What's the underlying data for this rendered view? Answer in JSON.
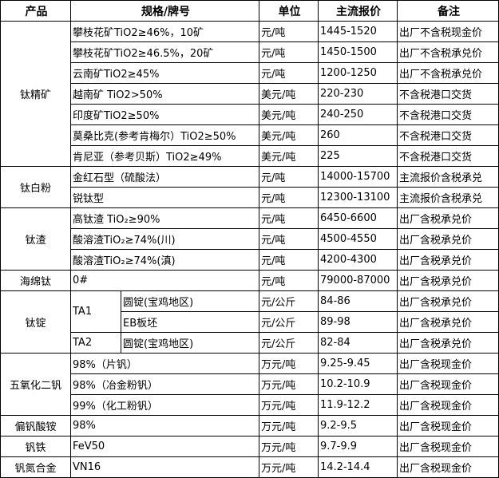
{
  "header": {
    "product": "产品",
    "spec": "规格/牌号",
    "unit": "单位",
    "price": "主流报价",
    "note": "备注"
  },
  "groups": [
    {
      "product": "钛精矿",
      "rows": [
        {
          "spec": "攀枝花矿TiO2≥46%，10矿",
          "unit": "元/吨",
          "price": "1445-1520",
          "note": "出厂不含税现金价"
        },
        {
          "spec": "攀枝花矿TiO2≥46.5%，20矿",
          "unit": "元/吨",
          "price": "1450-1500",
          "note": "出厂不含税承兑价"
        },
        {
          "spec": "云南矿TiO2≥45%",
          "unit": "元/吨",
          "price": "1200-1250",
          "note": "出厂不含税承兑价"
        },
        {
          "spec": "越南矿 TiO2>50%",
          "unit": "美元/吨",
          "price": "220-230",
          "note": "不含税港口交货"
        },
        {
          "spec": "印度矿TiO2≥50%",
          "unit": "美元/吨",
          "price": "240-250",
          "note": "不含税港口交货"
        },
        {
          "spec": "莫桑比克(参考肯梅尔）TiO2≥50%",
          "unit": "美元/吨",
          "price": "260",
          "note": "不含税港口交货"
        },
        {
          "spec": "肯尼亚（参考贝斯）TiO2≥49%",
          "unit": "美元/吨",
          "price": "225",
          "note": "不含税港口交货"
        }
      ]
    },
    {
      "product": "钛白粉",
      "rows": [
        {
          "spec": "金红石型（硫酸法）",
          "unit": "元/吨",
          "price": "14000-15700",
          "note": "主流报价含税承兑"
        },
        {
          "spec": "锐钛型",
          "unit": "元/吨",
          "price": "12300-13100",
          "note": "主流报价含税承兑"
        }
      ]
    },
    {
      "product": "钛渣",
      "rows": [
        {
          "spec": "高钛渣 TiO₂≥90%",
          "unit": "元/吨",
          "price": "6450-6600",
          "note": "出厂含税承兑价"
        },
        {
          "spec": "酸溶渣TiO₂≥74%(川)",
          "unit": "元/吨",
          "price": "4500-4550",
          "note": "出厂含税承兑价"
        },
        {
          "spec": "酸溶渣TiO₂≥74%(滇)",
          "unit": "元/吨",
          "price": "4200-4300",
          "note": "出厂含税承兑价"
        }
      ]
    },
    {
      "product": "海绵钛",
      "rows": [
        {
          "spec": "0#",
          "unit": "元/吨",
          "price": "79000-87000",
          "note": "出厂含税承兑价"
        }
      ]
    },
    {
      "product": "钛锭",
      "rows": [
        {
          "grade": "TA1",
          "sub": "圆锭(宝鸡地区)",
          "unit": "元/公斤",
          "price": "84-86",
          "note": "出厂含税承兑价"
        },
        {
          "sub": "EB板坯",
          "unit": "元/公斤",
          "price": "89-98",
          "note": "出厂含税承兑价"
        },
        {
          "grade": "TA2",
          "sub": "圆锭(宝鸡地区)",
          "unit": "元/公斤",
          "price": "82-84",
          "note": "出厂含税承兑价"
        }
      ]
    },
    {
      "product": "五氧化二钒",
      "rows": [
        {
          "spec": "98%（片钒）",
          "unit": "万元/吨",
          "price": "9.25-9.45",
          "note": "出厂含税现金价"
        },
        {
          "spec": "98%（冶金粉钒）",
          "unit": "万元/吨",
          "price": "10.2-10.9",
          "note": "出厂含税现金价"
        },
        {
          "spec": "99%（化工粉钒）",
          "unit": "万元/吨",
          "price": "11.9-12.2",
          "note": "出厂含税现金价"
        }
      ]
    },
    {
      "product": "偏钒酸铵",
      "rows": [
        {
          "spec": "98%",
          "unit": "万元/吨",
          "price": "9.2-9.5",
          "note": "出厂含税现金价"
        }
      ]
    },
    {
      "product": "钒铁",
      "rows": [
        {
          "spec": "FeV50",
          "unit": "万元/吨",
          "price": "9.7-9.9",
          "note": "出厂含税现金价"
        }
      ]
    },
    {
      "product": "钒氮合金",
      "rows": [
        {
          "spec": "VN16",
          "unit": "万元/吨",
          "price": "14.2-14.4",
          "note": "出厂含税现金价"
        }
      ]
    }
  ]
}
